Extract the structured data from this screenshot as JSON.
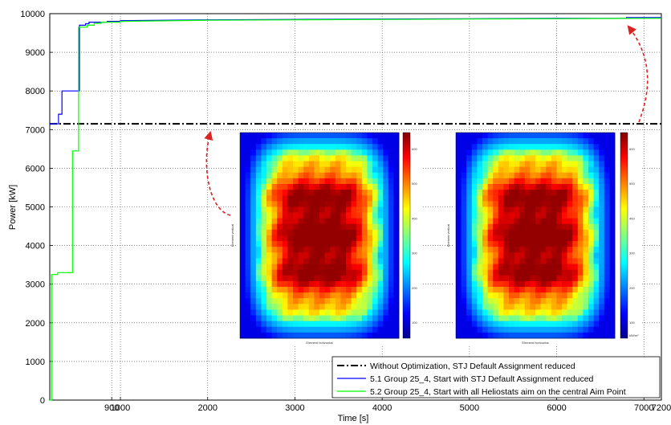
{
  "chart_data": {
    "type": "line",
    "title": "",
    "xlabel": "Time [s]",
    "ylabel": "Power [kW]",
    "xlim": [
      190,
      7200
    ],
    "ylim": [
      0,
      10000
    ],
    "x_ticks": [
      900,
      1000,
      2000,
      3000,
      4000,
      5000,
      6000,
      7000,
      7200
    ],
    "x_tick_labels": [
      "900",
      "1000",
      "2000",
      "3000",
      "4000",
      "5000",
      "6000",
      "7000",
      "7200"
    ],
    "y_ticks": [
      0,
      1000,
      2000,
      3000,
      4000,
      5000,
      6000,
      7000,
      8000,
      9000,
      10000
    ],
    "y_tick_labels": [
      "0",
      "1000",
      "2000",
      "3000",
      "4000",
      "5000",
      "6000",
      "7000",
      "8000",
      "9000",
      "10000"
    ],
    "grid": true,
    "legend_position": "bottom-right",
    "series": [
      {
        "name": "Without Optimization, STJ Default Assignment reduced",
        "color": "#000000",
        "style": "dash-dot",
        "x": [
          190,
          7200
        ],
        "y": [
          7150,
          7150
        ]
      },
      {
        "name": "5.1 Group 25_4, Start with STJ Default Assignment reduced",
        "color": "#0000ff",
        "style": "solid",
        "x": [
          190,
          290,
          290,
          330,
          330,
          530,
          530,
          600,
          600,
          640,
          640,
          850,
          850,
          1000,
          1000,
          2000,
          3000,
          4000,
          5000,
          6000,
          6800,
          6800,
          7200
        ],
        "y": [
          7150,
          7150,
          7400,
          7400,
          8000,
          8000,
          9700,
          9700,
          9740,
          9740,
          9780,
          9780,
          9800,
          9800,
          9820,
          9840,
          9850,
          9860,
          9870,
          9880,
          9880,
          9900,
          9900
        ]
      },
      {
        "name": "5.2 Group 25_4, Start with all Heliostats aim on the central Aim Point",
        "color": "#00ff00",
        "style": "solid",
        "x": [
          190,
          210,
          210,
          280,
          280,
          450,
          450,
          520,
          520,
          620,
          620,
          700,
          700,
          780,
          780,
          1000,
          1000,
          2000,
          3000,
          4000,
          5000,
          6000,
          7000,
          7200
        ],
        "y": [
          0,
          0,
          3250,
          3250,
          3300,
          3300,
          6450,
          6450,
          9650,
          9650,
          9700,
          9700,
          9750,
          9750,
          9780,
          9780,
          9800,
          9830,
          9840,
          9850,
          9860,
          9870,
          9880,
          9880
        ]
      }
    ],
    "insets": [
      {
        "type": "heatmap",
        "xlabel": "Element horizontal",
        "ylabel": "Element vertical",
        "colorbar_ticks": [
          "600",
          "500",
          "400",
          "300",
          "200",
          "100"
        ],
        "colorbar_unit": ""
      },
      {
        "type": "heatmap",
        "xlabel": "Element horizontal",
        "ylabel": "Element vertical",
        "colorbar_ticks": [
          "600",
          "500",
          "400",
          "300",
          "200",
          "100"
        ],
        "colorbar_unit": "kW/m²"
      }
    ]
  }
}
